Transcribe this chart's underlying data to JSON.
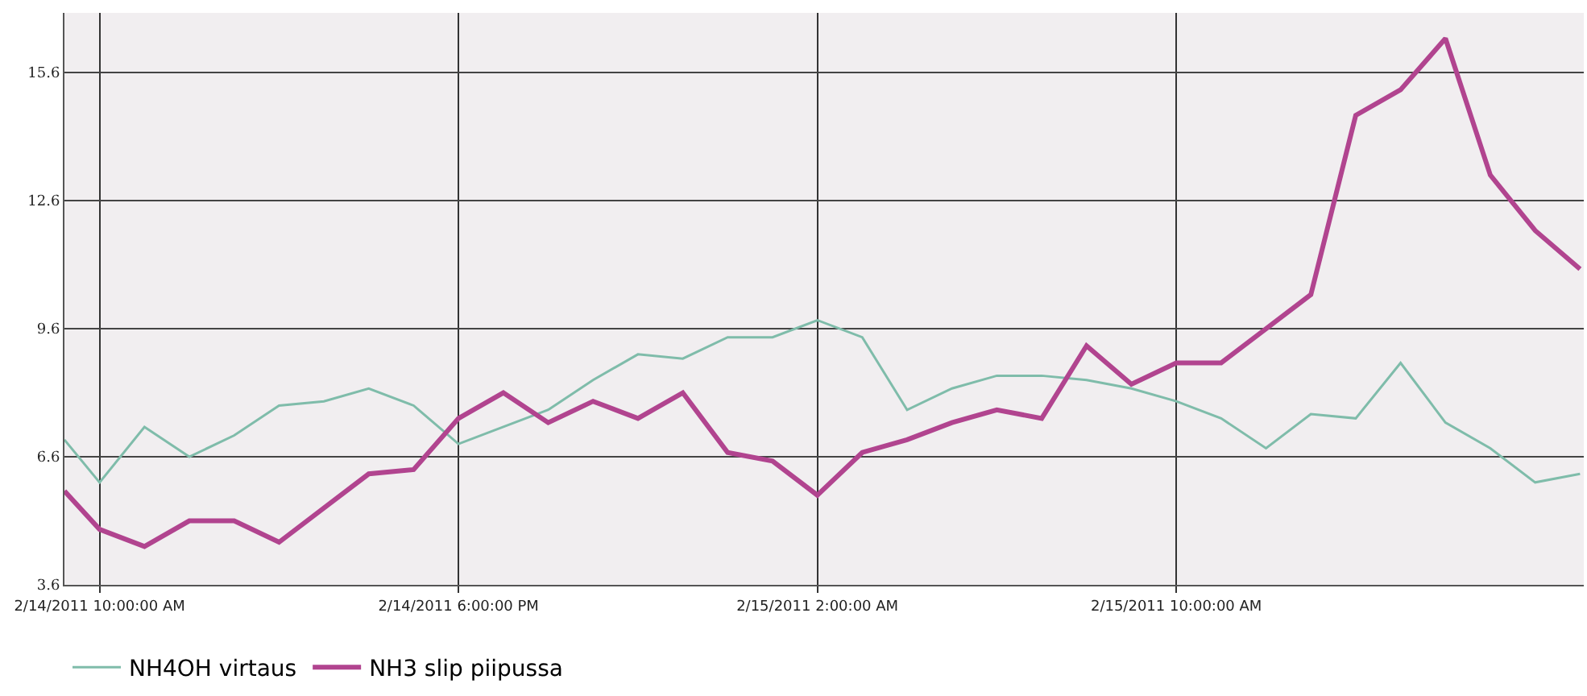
{
  "chart_data": {
    "type": "line",
    "x": [
      "2011-02-14T09:13",
      "2011-02-14T10:00",
      "2011-02-14T11:00",
      "2011-02-14T12:00",
      "2011-02-14T13:00",
      "2011-02-14T14:00",
      "2011-02-14T15:00",
      "2011-02-14T16:00",
      "2011-02-14T17:00",
      "2011-02-14T18:00",
      "2011-02-14T19:00",
      "2011-02-14T20:00",
      "2011-02-14T21:00",
      "2011-02-14T22:00",
      "2011-02-14T23:00",
      "2011-02-15T00:00",
      "2011-02-15T01:00",
      "2011-02-15T02:00",
      "2011-02-15T03:00",
      "2011-02-15T04:00",
      "2011-02-15T05:00",
      "2011-02-15T06:00",
      "2011-02-15T07:00",
      "2011-02-15T08:00",
      "2011-02-15T09:00",
      "2011-02-15T10:00",
      "2011-02-15T11:00",
      "2011-02-15T12:00",
      "2011-02-15T13:00",
      "2011-02-15T14:00",
      "2011-02-15T15:00",
      "2011-02-15T16:00",
      "2011-02-15T17:00",
      "2011-02-15T18:00",
      "2011-02-15T19:00"
    ],
    "series": [
      {
        "name": "NH4OH virtaus",
        "color": "#7fbcaa",
        "values": [
          7.0,
          6.0,
          7.3,
          6.6,
          7.1,
          7.8,
          7.9,
          8.2,
          7.8,
          6.9,
          7.3,
          7.7,
          8.4,
          9.0,
          8.9,
          9.4,
          9.4,
          9.8,
          9.4,
          7.7,
          8.2,
          8.5,
          8.5,
          8.4,
          8.2,
          7.9,
          7.5,
          6.8,
          7.6,
          7.5,
          8.8,
          7.4,
          6.8,
          6.0,
          6.2
        ]
      },
      {
        "name": "NH3 slip piipussa",
        "color": "#b1448f",
        "values": [
          5.8,
          4.9,
          4.5,
          5.1,
          5.1,
          4.6,
          5.4,
          6.2,
          6.3,
          7.5,
          8.1,
          7.4,
          7.9,
          7.5,
          8.1,
          6.7,
          6.5,
          5.7,
          6.7,
          7.0,
          7.4,
          7.7,
          7.5,
          9.2,
          8.3,
          8.8,
          8.8,
          9.6,
          10.4,
          14.6,
          15.2,
          16.4,
          13.2,
          11.9,
          11.0
        ]
      }
    ],
    "xlim": [
      "2011-02-14T09:13",
      "2011-02-15T19:05"
    ],
    "xticks": [
      {
        "value": "2011-02-14T10:00",
        "label": "2/14/2011 10:00:00 AM"
      },
      {
        "value": "2011-02-14T18:00",
        "label": "2/14/2011 6:00:00 PM"
      },
      {
        "value": "2011-02-15T02:00",
        "label": "2/15/2011 2:00:00 AM"
      },
      {
        "value": "2011-02-15T10:00",
        "label": "2/15/2011 10:00:00 AM"
      }
    ],
    "ylim": [
      3.6,
      17.0
    ],
    "yticks": [
      3.6,
      6.6,
      9.6,
      12.6,
      15.6
    ],
    "grid": true,
    "legend": "bottom left",
    "line_style": "solid",
    "marker": "none"
  }
}
